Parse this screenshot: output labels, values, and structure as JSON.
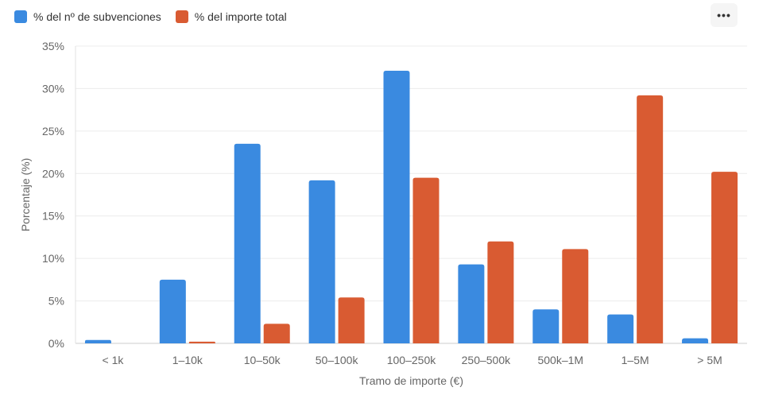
{
  "legend": {
    "items": [
      {
        "label": "% del nº de subvenciones",
        "color": "#3a8ae0"
      },
      {
        "label": "% del importe total",
        "color": "#d95b32"
      }
    ]
  },
  "menu": {
    "label": "•••",
    "icon": "more-horizontal-icon"
  },
  "chart_data": {
    "type": "bar",
    "categories": [
      "< 1k",
      "1–10k",
      "10–50k",
      "50–100k",
      "100–250k",
      "250–500k",
      "500k–1M",
      "1–5M",
      "> 5M"
    ],
    "series": [
      {
        "name": "% del nº de subvenciones",
        "color": "#3a8ae0",
        "values": [
          0.4,
          7.5,
          23.5,
          19.2,
          32.1,
          9.3,
          4.0,
          3.4,
          0.6
        ]
      },
      {
        "name": "% del importe total",
        "color": "#d95b32",
        "values": [
          0.0,
          0.2,
          2.3,
          5.4,
          19.5,
          12.0,
          11.1,
          29.2,
          20.2
        ]
      }
    ],
    "xlabel": "Tramo de importe (€)",
    "ylabel": "Porcentaje (%)",
    "ylim": [
      0,
      35
    ],
    "yticks": [
      0,
      5,
      10,
      15,
      20,
      25,
      30,
      35
    ],
    "ytick_format": "%",
    "grid": true,
    "legend_position": "top-left"
  }
}
